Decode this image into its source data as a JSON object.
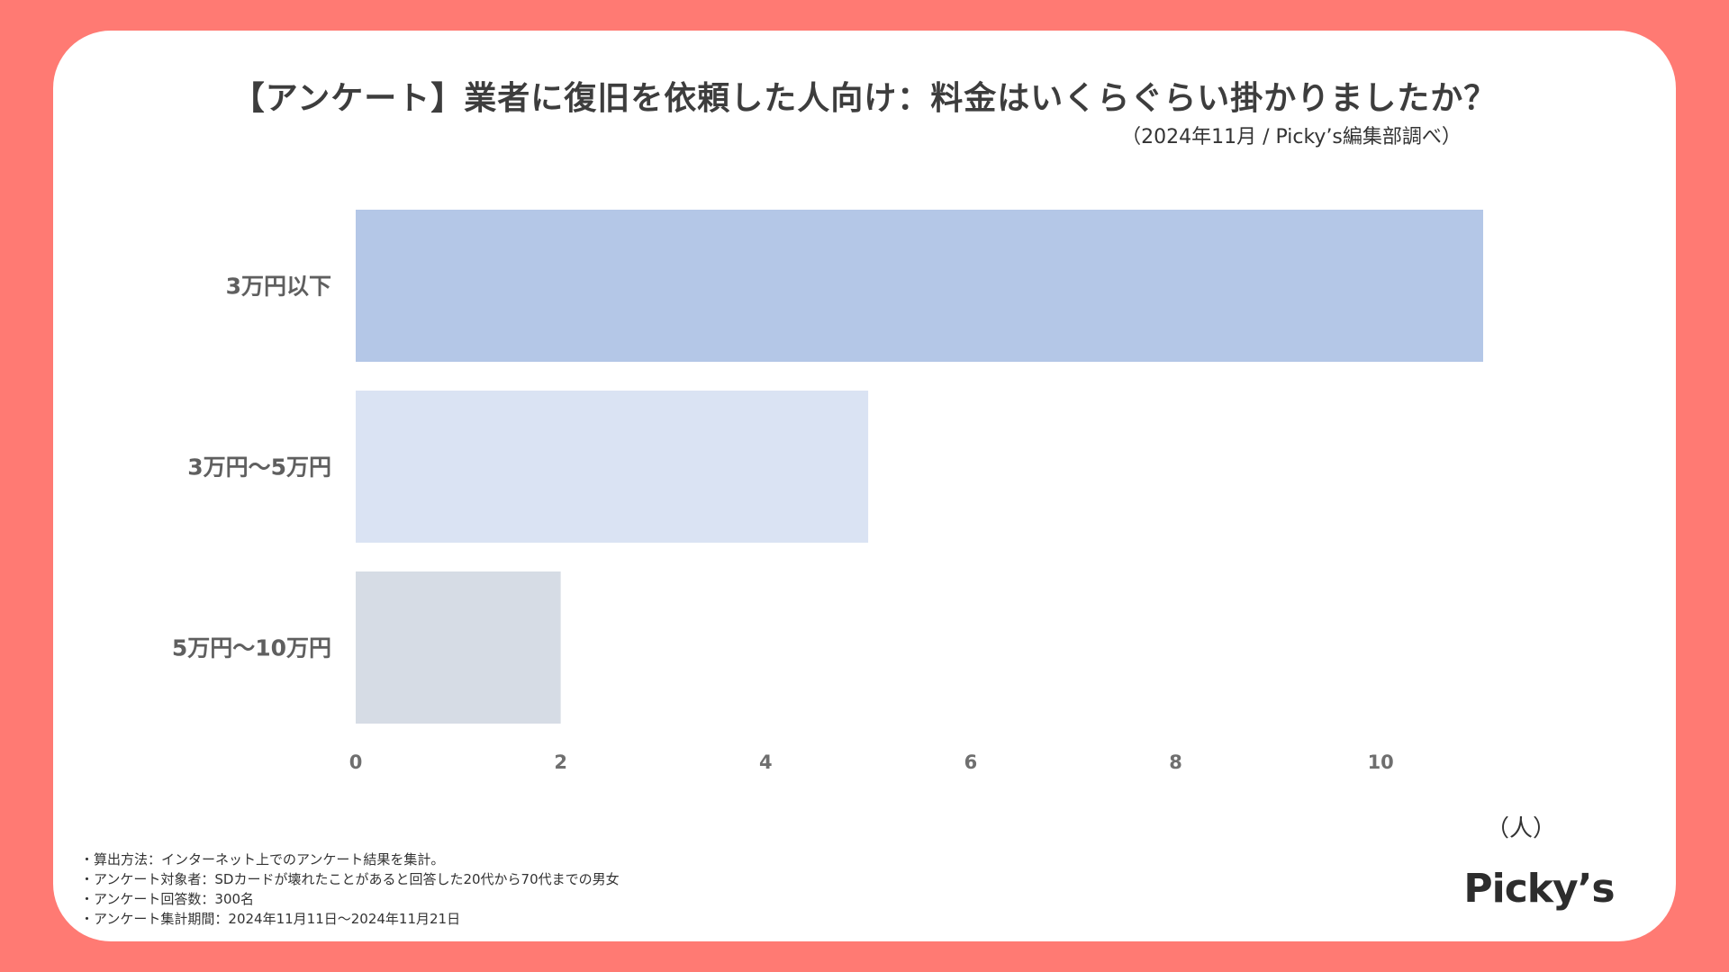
{
  "title": "【アンケート】業者に復旧を依頼した人向け：料金はいくらぐらい掛かりましたか？",
  "source": "（2024年11月 / Picky’s編集部調べ）",
  "unit": "（人）",
  "notes": [
    "・算出方法：インターネット上でのアンケート結果を集計。",
    "・アンケート対象者：SDカードが壊れたことがあると回答した20代から70代までの男女",
    "・アンケート回答数：300名",
    "・アンケート集計期間：2024年11月11日〜2024年11月21日"
  ],
  "logo": "Picky’s",
  "colors": {
    "background": "#ff7a73",
    "card": "#ffffff"
  },
  "chart_data": {
    "type": "bar",
    "orientation": "horizontal",
    "categories": [
      "3万円以下",
      "3万円〜5万円",
      "5万円〜10万円"
    ],
    "values": [
      11,
      5,
      2
    ],
    "bar_colors": [
      "#b4c7e7",
      "#dae3f3",
      "#d6dce5"
    ],
    "xlim": [
      0,
      11
    ],
    "xticks": [
      0,
      2,
      4,
      6,
      8,
      10
    ],
    "grid": false,
    "legend": "none"
  }
}
